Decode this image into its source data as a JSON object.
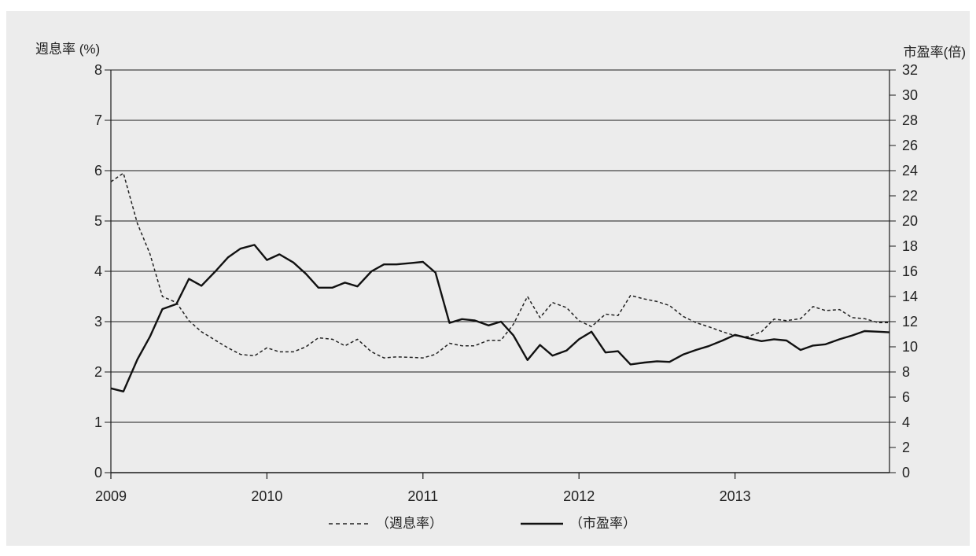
{
  "chart_data": {
    "type": "line",
    "y_left": {
      "label": "週息率 (%)",
      "ylim": [
        0,
        8
      ],
      "ticks": [
        "0",
        "1",
        "2",
        "3",
        "4",
        "5",
        "6",
        "7",
        "8"
      ]
    },
    "y_right": {
      "label": "市盈率(倍)",
      "ylim": [
        0,
        32
      ],
      "ticks": [
        "0",
        "2",
        "4",
        "6",
        "8",
        "10",
        "12",
        "14",
        "16",
        "18",
        "20",
        "22",
        "24",
        "26",
        "28",
        "30",
        "32"
      ]
    },
    "x_ticks": [
      {
        "label": "2009",
        "value": 2009.0
      },
      {
        "label": "2010",
        "value": 2010.0
      },
      {
        "label": "2011",
        "value": 2011.0
      },
      {
        "label": "2012",
        "value": 2012.0
      },
      {
        "label": "2013",
        "value": 2013.0
      }
    ],
    "xlim": [
      2009.0,
      2013.99
    ],
    "grid": "horizontal",
    "legend_position": "bottom",
    "series": [
      {
        "name": "（週息率）",
        "axis": "left",
        "style": "dashed",
        "color": "#222222",
        "x": [
          2009.0,
          2009.08,
          2009.17,
          2009.25,
          2009.33,
          2009.42,
          2009.5,
          2009.58,
          2009.67,
          2009.75,
          2009.83,
          2009.92,
          2010.0,
          2010.08,
          2010.17,
          2010.25,
          2010.33,
          2010.42,
          2010.5,
          2010.58,
          2010.67,
          2010.75,
          2010.83,
          2010.92,
          2011.0,
          2011.08,
          2011.17,
          2011.25,
          2011.33,
          2011.42,
          2011.5,
          2011.58,
          2011.67,
          2011.75,
          2011.83,
          2011.92,
          2012.0,
          2012.08,
          2012.17,
          2012.25,
          2012.33,
          2012.42,
          2012.5,
          2012.58,
          2012.67,
          2012.75,
          2012.83,
          2012.92,
          2013.0,
          2013.08,
          2013.17,
          2013.25,
          2013.33,
          2013.42,
          2013.5,
          2013.58,
          2013.67,
          2013.75,
          2013.83,
          2013.92,
          2013.99
        ],
        "values": [
          5.78,
          5.95,
          4.95,
          4.35,
          3.5,
          3.38,
          3.02,
          2.8,
          2.63,
          2.48,
          2.35,
          2.32,
          2.48,
          2.4,
          2.4,
          2.5,
          2.68,
          2.65,
          2.52,
          2.65,
          2.4,
          2.28,
          2.3,
          2.29,
          2.28,
          2.35,
          2.57,
          2.52,
          2.52,
          2.63,
          2.63,
          2.95,
          3.5,
          3.08,
          3.38,
          3.28,
          3.02,
          2.9,
          3.15,
          3.12,
          3.52,
          3.45,
          3.4,
          3.32,
          3.1,
          2.98,
          2.9,
          2.8,
          2.72,
          2.7,
          2.8,
          3.05,
          3.02,
          3.06,
          3.3,
          3.22,
          3.24,
          3.08,
          3.06,
          2.98,
          2.98
        ]
      },
      {
        "name": "（市盈率）",
        "axis": "right",
        "style": "solid",
        "color": "#111111",
        "x": [
          2009.0,
          2009.08,
          2009.17,
          2009.25,
          2009.33,
          2009.42,
          2009.5,
          2009.58,
          2009.67,
          2009.75,
          2009.83,
          2009.92,
          2010.0,
          2010.08,
          2010.17,
          2010.25,
          2010.33,
          2010.42,
          2010.5,
          2010.58,
          2010.67,
          2010.75,
          2010.83,
          2010.92,
          2011.0,
          2011.08,
          2011.17,
          2011.25,
          2011.33,
          2011.42,
          2011.5,
          2011.58,
          2011.67,
          2011.75,
          2011.83,
          2011.92,
          2012.0,
          2012.08,
          2012.17,
          2012.25,
          2012.33,
          2012.42,
          2012.5,
          2012.58,
          2012.67,
          2012.75,
          2012.83,
          2012.92,
          2013.0,
          2013.08,
          2013.17,
          2013.25,
          2013.33,
          2013.42,
          2013.5,
          2013.58,
          2013.67,
          2013.75,
          2013.83,
          2013.92,
          2013.99
        ],
        "values": [
          6.7,
          6.45,
          9.0,
          10.8,
          13.0,
          13.4,
          15.4,
          14.85,
          16.0,
          17.1,
          17.8,
          18.1,
          16.9,
          17.35,
          16.7,
          15.8,
          14.7,
          14.7,
          15.1,
          14.8,
          16.0,
          16.55,
          16.55,
          16.65,
          16.75,
          15.9,
          11.9,
          12.2,
          12.1,
          11.7,
          12.0,
          10.9,
          8.95,
          10.15,
          9.3,
          9.7,
          10.6,
          11.2,
          9.55,
          9.65,
          8.6,
          8.75,
          8.85,
          8.8,
          9.4,
          9.75,
          10.05,
          10.5,
          10.95,
          10.7,
          10.45,
          10.6,
          10.5,
          9.75,
          10.1,
          10.2,
          10.6,
          10.9,
          11.25,
          11.2,
          11.15
        ]
      }
    ]
  }
}
